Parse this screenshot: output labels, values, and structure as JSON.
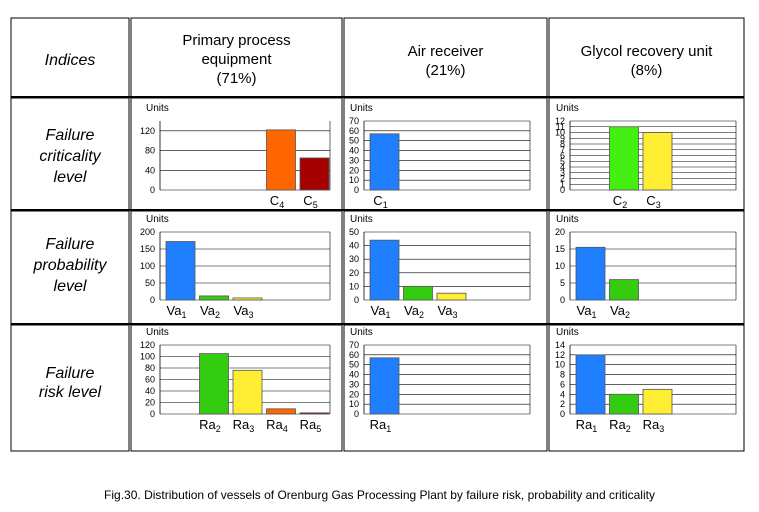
{
  "header": {
    "corner_label": "Indices",
    "columns": [
      {
        "lines": [
          "Primary process",
          "equipment",
          "(71%)"
        ]
      },
      {
        "lines": [
          "Air receiver",
          "(21%)"
        ]
      },
      {
        "lines": [
          "Glycol recovery unit",
          "(8%)"
        ]
      }
    ]
  },
  "rows": [
    {
      "lines": [
        "Failure",
        "criticality",
        "level"
      ]
    },
    {
      "lines": [
        "Failure",
        "probability",
        "level"
      ]
    },
    {
      "lines": [
        "Failure",
        "risk level"
      ]
    }
  ],
  "caption": "Fig.30. Distribution of vessels of Orenburg Gas Processing Plant by failure risk, probability and criticality",
  "colors": {
    "blue": "#1f7fff",
    "green": "#33cc11",
    "yellow": "#ffee33",
    "orange": "#ff6600",
    "darkred": "#a50000",
    "bright_green": "#44ee11"
  },
  "chart_data": [
    {
      "type": "bar",
      "row": 0,
      "col": 0,
      "ylabel": "Units",
      "ylim": [
        0,
        140
      ],
      "yticks": [
        0,
        40,
        80,
        120
      ],
      "slots": 5,
      "bars": [
        {
          "base": "C",
          "sub": "4",
          "value": 122,
          "color": "#ff6600",
          "slot": 3
        },
        {
          "base": "C",
          "sub": "5",
          "value": 65,
          "color": "#a50000",
          "slot": 4
        }
      ]
    },
    {
      "type": "bar",
      "row": 0,
      "col": 1,
      "ylabel": "Units",
      "ylim": [
        0,
        70
      ],
      "yticks": [
        0,
        10,
        20,
        30,
        40,
        50,
        60,
        70
      ],
      "slots": 5,
      "bars": [
        {
          "base": "C",
          "sub": "1",
          "value": 57,
          "color": "#1f7fff",
          "slot": 0
        }
      ]
    },
    {
      "type": "bar",
      "row": 0,
      "col": 2,
      "ylabel": "Units",
      "ylim": [
        0,
        12
      ],
      "yticks": [
        0,
        1,
        2,
        3,
        4,
        5,
        6,
        7,
        8,
        9,
        10,
        11,
        12
      ],
      "slots": 5,
      "bars": [
        {
          "base": "C",
          "sub": "2",
          "value": 11,
          "color": "#44ee11",
          "slot": 1
        },
        {
          "base": "C",
          "sub": "3",
          "value": 10,
          "color": "#ffee33",
          "slot": 2
        }
      ]
    },
    {
      "type": "bar",
      "row": 1,
      "col": 0,
      "ylabel": "Units",
      "ylim": [
        0,
        200
      ],
      "yticks": [
        0,
        50,
        100,
        150,
        200
      ],
      "slots": 5,
      "bars": [
        {
          "base": "Va",
          "sub": "1",
          "value": 172,
          "color": "#1f7fff",
          "slot": 0
        },
        {
          "base": "Va",
          "sub": "2",
          "value": 12,
          "color": "#33cc11",
          "slot": 1
        },
        {
          "base": "Va",
          "sub": "3",
          "value": 6,
          "color": "#ffee33",
          "slot": 2
        }
      ]
    },
    {
      "type": "bar",
      "row": 1,
      "col": 1,
      "ylabel": "Units",
      "ylim": [
        0,
        50
      ],
      "yticks": [
        0,
        10,
        20,
        30,
        40,
        50
      ],
      "slots": 5,
      "bars": [
        {
          "base": "Va",
          "sub": "1",
          "value": 44,
          "color": "#1f7fff",
          "slot": 0
        },
        {
          "base": "Va",
          "sub": "2",
          "value": 10,
          "color": "#33cc11",
          "slot": 1
        },
        {
          "base": "Va",
          "sub": "3",
          "value": 5,
          "color": "#ffee33",
          "slot": 2
        }
      ]
    },
    {
      "type": "bar",
      "row": 1,
      "col": 2,
      "ylabel": "Units",
      "ylim": [
        0,
        20
      ],
      "yticks": [
        0,
        5,
        10,
        15,
        20
      ],
      "slots": 5,
      "bars": [
        {
          "base": "Va",
          "sub": "1",
          "value": 15.5,
          "color": "#1f7fff",
          "slot": 0
        },
        {
          "base": "Va",
          "sub": "2",
          "value": 6,
          "color": "#33cc11",
          "slot": 1
        }
      ]
    },
    {
      "type": "bar",
      "row": 2,
      "col": 0,
      "ylabel": "Units",
      "ylim": [
        0,
        120
      ],
      "yticks": [
        0,
        20,
        40,
        60,
        80,
        100,
        120
      ],
      "slots": 5,
      "bars": [
        {
          "base": "Ra",
          "sub": "2",
          "value": 105,
          "color": "#33cc11",
          "slot": 1
        },
        {
          "base": "Ra",
          "sub": "3",
          "value": 76,
          "color": "#ffee33",
          "slot": 2
        },
        {
          "base": "Ra",
          "sub": "4",
          "value": 9,
          "color": "#ff6600",
          "slot": 3
        },
        {
          "base": "Ra",
          "sub": "5",
          "value": 2,
          "color": "#a50000",
          "slot": 4
        }
      ]
    },
    {
      "type": "bar",
      "row": 2,
      "col": 1,
      "ylabel": "Units",
      "ylim": [
        0,
        70
      ],
      "yticks": [
        0,
        10,
        20,
        30,
        40,
        50,
        60,
        70
      ],
      "slots": 5,
      "bars": [
        {
          "base": "Ra",
          "sub": "1",
          "value": 57,
          "color": "#1f7fff",
          "slot": 0
        }
      ]
    },
    {
      "type": "bar",
      "row": 2,
      "col": 2,
      "ylabel": "Units",
      "ylim": [
        0,
        14
      ],
      "yticks": [
        0,
        2,
        4,
        6,
        8,
        10,
        12,
        14
      ],
      "slots": 5,
      "bars": [
        {
          "base": "Ra",
          "sub": "1",
          "value": 12,
          "color": "#1f7fff",
          "slot": 0
        },
        {
          "base": "Ra",
          "sub": "2",
          "value": 4,
          "color": "#33cc11",
          "slot": 1
        },
        {
          "base": "Ra",
          "sub": "3",
          "value": 5,
          "color": "#ffee33",
          "slot": 2
        }
      ]
    }
  ]
}
